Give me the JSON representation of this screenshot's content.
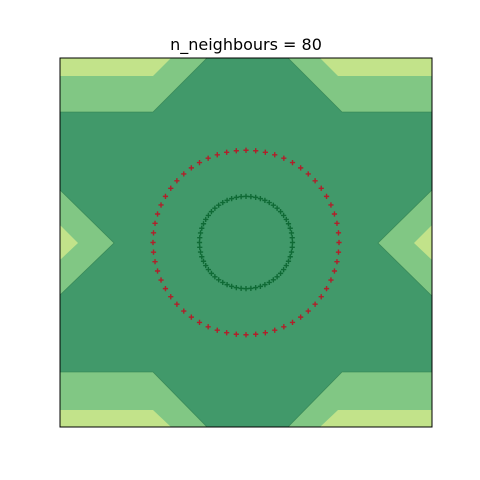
{
  "chart_data": {
    "type": "contour",
    "title": "n_neighbours = 80",
    "xlim": [
      -1.2,
      1.2
    ],
    "ylim": [
      -1.2,
      1.2
    ],
    "axes_ticks": "hidden",
    "grid": false,
    "regions": [
      {
        "level": "high",
        "color": "#c2e38a",
        "shape": "outer-corner-bands"
      },
      {
        "level": "mid",
        "color": "#81c784",
        "shape": "corner-and-side-wedges"
      },
      {
        "level": "low",
        "color": "#41996a",
        "shape": "central-cross"
      }
    ],
    "series": [
      {
        "marker": "plus",
        "color": "#b0202a",
        "radius": 0.6,
        "count": 60
      },
      {
        "marker": "plus",
        "color": "#0f6a35",
        "radius": 0.3,
        "count": 60
      }
    ]
  }
}
